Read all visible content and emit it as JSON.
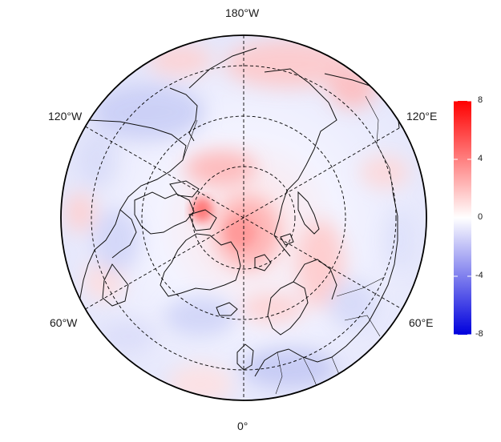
{
  "map": {
    "projection": "north-polar-stereographic",
    "graticule_style": "dashed",
    "longitude_labels": {
      "top": "180°W",
      "upper_left": "120°W",
      "upper_right": "120°E",
      "lower_left": "60°W",
      "lower_right": "60°E",
      "bottom": "0°"
    }
  },
  "colorbar": {
    "min": -8,
    "max": 8,
    "tick_labels": [
      "8",
      "4",
      "0",
      "-4",
      "-8"
    ],
    "colors": {
      "low": "#0000dd",
      "mid": "#ffffff",
      "high": "#ff0000"
    }
  }
}
